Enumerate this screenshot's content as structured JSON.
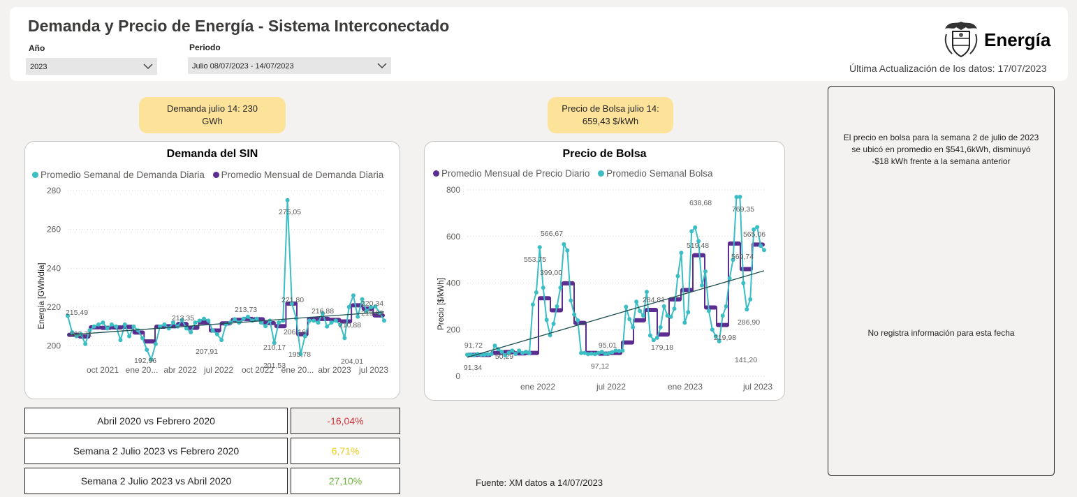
{
  "header": {
    "title": "Demanda y Precio de Energía - Sistema Interconectado",
    "year_label": "Año",
    "year_value": "2023",
    "period_label": "Periodo",
    "period_value": "Julio 08/07/2023 - 14/07/2023",
    "brand": "Energía",
    "last_update": "Última Actualización de los datos: 17/07/2023"
  },
  "kpis": {
    "demand": "Demanda julio 14: 230 GWh",
    "price": "Precio de Bolsa julio 14: 659,43 $/kWh"
  },
  "demand_chart": {
    "title": "Demanda del SIN",
    "legend": [
      "Promedio Semanal de Demanda Diaria",
      "Promedio Mensual de Demanda Diaria"
    ]
  },
  "price_chart": {
    "title": "Precio de Bolsa",
    "legend": [
      "Promedio Mensual de Precio Diario",
      "Promedio Semanal Bolsa"
    ]
  },
  "comparisons": [
    {
      "label": "Abril 2020 vs Febrero 2020",
      "value": "-16,04%",
      "color": "#d13438"
    },
    {
      "label": "Semana 2 Julio 2023 vs Febrero 2020",
      "value": "6,71%",
      "color": "#f2c811"
    },
    {
      "label": "Semana 2 Julio 2023 vs Abril 2020",
      "value": "27,10%",
      "color": "#6bb33a"
    }
  ],
  "side_panel": {
    "text": "El precio en bolsa para la semana 2 de julio de 2023 se ubicó en promedio en $541,6kWh, disminuyó -$18 kWh frente a la semana anterior",
    "no_data": "No registra información para esta fecha"
  },
  "footer": "Fuente: XM datos a 14/07/2023",
  "colors": {
    "weekly": "#3bbdc4",
    "monthly": "#5c2d91",
    "trend": "#1f4e4f"
  },
  "chart_data": [
    {
      "type": "line",
      "title": "Demanda del SIN",
      "ylabel": "Energía [GWh/día]",
      "ylim": [
        193,
        280
      ],
      "yticks": [
        200,
        220,
        240,
        260,
        280
      ],
      "xticks": [
        "oct 2021",
        "ene 20...",
        "abr 2022",
        "jul 2022",
        "oct 2022",
        "ene 20...",
        "abr 2023",
        "jul 2023"
      ],
      "legend_position": "top",
      "series": [
        {
          "name": "Promedio Semanal de Demanda Diaria",
          "values": [
            215.49,
            207,
            205,
            206,
            201,
            208,
            210,
            211,
            212,
            209,
            211,
            210,
            203,
            211,
            205,
            210,
            208,
            204,
            198,
            192.96,
            201,
            210,
            211,
            209,
            212,
            210,
            213.35,
            209,
            207,
            212,
            213,
            214,
            213,
            207.91,
            206,
            203,
            211,
            212,
            213.73,
            212,
            214,
            215,
            213,
            214,
            212,
            210.17,
            213,
            201.53,
            212,
            213,
            275.05,
            221.8,
            214.16,
            195.78,
            205,
            213,
            213,
            212,
            216.88,
            210,
            212,
            213,
            210.88,
            204.01,
            220,
            226,
            215,
            224,
            218,
            219.92,
            220.34,
            217,
            213
          ]
        },
        {
          "name": "Promedio Mensual de Demanda Diaria",
          "values": [
            205.71,
            204.8,
            209.6,
            209.3,
            209.5,
            209.8,
            206.9,
            202.3,
            209.9,
            210.1,
            211.3,
            209.3,
            212.1,
            207.9,
            211.6,
            213.4,
            213.9,
            213.7,
            211.8,
            210.17,
            221.8,
            206,
            213.9,
            213.9,
            213.4,
            212.6,
            220.9,
            219.2,
            215.7
          ]
        }
      ],
      "annotations": [
        "215,49",
        "205,71",
        "192,96",
        "213,35",
        "207,91",
        "213,73",
        "210,17",
        "201,53",
        "275,05",
        "221,80",
        "206,16",
        "195,78",
        "216,88",
        "210,88",
        "204,01",
        "220,34",
        "219,92"
      ]
    },
    {
      "type": "line",
      "title": "Precio de Bolsa",
      "ylabel": "Precio [$/kWh]",
      "ylim": [
        0,
        800
      ],
      "yticks": [
        0,
        200,
        400,
        600,
        800
      ],
      "xticks": [
        "ene 2022",
        "jul 2022",
        "ene 2023",
        "jul 2023"
      ],
      "legend_position": "top",
      "series": [
        {
          "name": "Promedio Mensual de Precio Diario",
          "values": [
            91.72,
            91.34,
            100,
            104,
            98,
            100,
            335,
            283,
            399,
            229,
            100,
            97.12,
            100,
            145,
            240,
            284.81,
            179.18,
            330,
            370,
            519.48,
            295,
            219.98,
            569.74,
            460,
            565.06
          ]
        },
        {
          "name": "Promedio Semanal Bolsa",
          "values": [
            92,
            93,
            90,
            95,
            92,
            93,
            94,
            95,
            131,
            116,
            105,
            90,
            100,
            110,
            96,
            110,
            100,
            105,
            100,
            308,
            360,
            553.75,
            380,
            242,
            176,
            225,
            300,
            380,
            566.67,
            540,
            325,
            265,
            240,
            100,
            100,
            95.01,
            97,
            95,
            100,
            105,
            96,
            99,
            103,
            110,
            108,
            110,
            298,
            245,
            210,
            320,
            280,
            260,
            362,
            175,
            155,
            165,
            210,
            300,
            260,
            255,
            290,
            430,
            530,
            230,
            275,
            622,
            638.68,
            580,
            390,
            450,
            280,
            200,
            172,
            150,
            260,
            300,
            420,
            500,
            769.35,
            770,
            400,
            286.9,
            330,
            630,
            640,
            560,
            541.6
          ]
        }
      ],
      "annotations": [
        "91,72",
        "91,34",
        "553,75",
        "566,67",
        "399,00",
        "50,29",
        "95,01",
        "97,12",
        "284,81",
        "179,18",
        "519,48",
        "638,68",
        "219,98",
        "141,20",
        "569,74",
        "769,35",
        "565,06",
        "286,90"
      ]
    }
  ]
}
